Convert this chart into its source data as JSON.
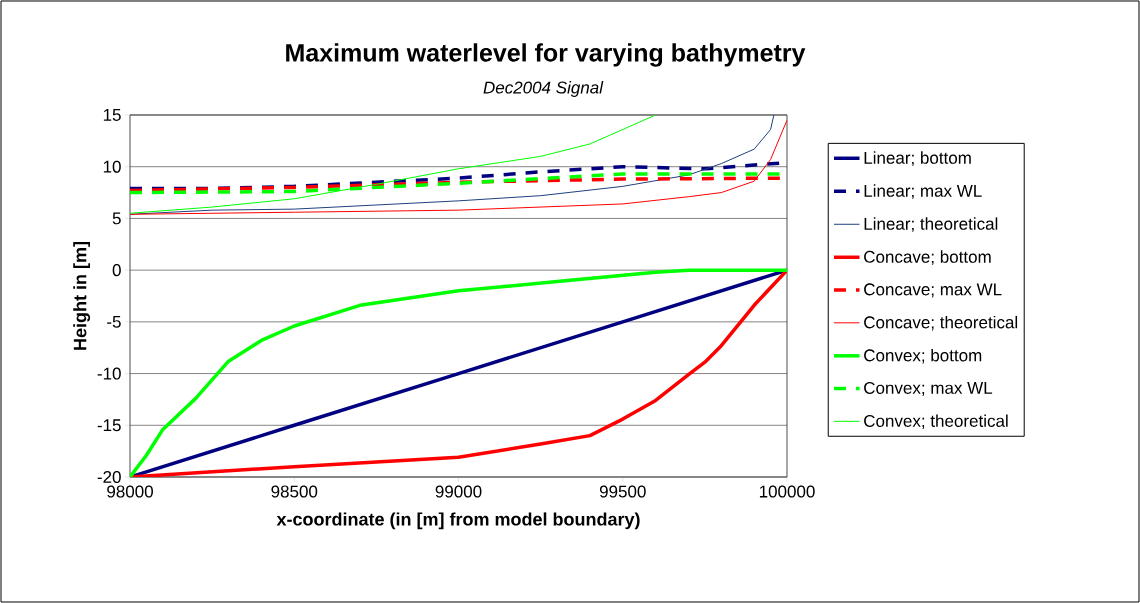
{
  "chart_data": {
    "type": "line",
    "title": "Maximum waterlevel for varying bathymetry",
    "subtitle": "Dec2004 Signal",
    "xlabel": "x-coordinate (in [m] from model boundary)",
    "ylabel": "Height in [m]",
    "xlim": [
      98000,
      100000
    ],
    "ylim": [
      -20,
      15
    ],
    "xticks": [
      98000,
      98500,
      99000,
      99500,
      100000
    ],
    "yticks": [
      -20,
      -15,
      -10,
      -5,
      0,
      5,
      10,
      15
    ],
    "grid": "y",
    "legend": "right",
    "series": [
      {
        "name": "Linear; bottom",
        "color": "#000080",
        "line_style": "solid",
        "x": [
          98000,
          98500,
          99000,
          99500,
          100000
        ],
        "values": [
          -20,
          -15,
          -10,
          -5,
          0
        ]
      },
      {
        "name": "Linear; max WL",
        "color": "#000080",
        "line_style": "dashed",
        "x": [
          98000,
          98250,
          98500,
          98750,
          99000,
          99250,
          99500,
          99750,
          100000
        ],
        "values": [
          7.9,
          7.9,
          8.1,
          8.5,
          8.9,
          9.5,
          10.0,
          9.8,
          10.4
        ]
      },
      {
        "name": "Linear; theoretical",
        "color": "#1f3f7f",
        "line_style": "solid",
        "x": [
          98000,
          98250,
          98500,
          98750,
          99000,
          99250,
          99500,
          99700,
          99800,
          99900,
          99950,
          99960
        ],
        "values": [
          5.4,
          5.8,
          5.9,
          6.3,
          6.7,
          7.2,
          8.1,
          9.2,
          10.3,
          11.7,
          13.6,
          15
        ]
      },
      {
        "name": "Concave; bottom",
        "color": "#ff0000",
        "line_style": "solid",
        "x": [
          98000,
          98500,
          99000,
          99250,
          99400,
          99500,
          99600,
          99700,
          99750,
          99800,
          99900,
          100000
        ],
        "values": [
          -20,
          -19,
          -18.1,
          -16.8,
          -16.0,
          -14.4,
          -12.6,
          -10.1,
          -8.9,
          -7.3,
          -3.4,
          0
        ]
      },
      {
        "name": "Concave; max WL",
        "color": "#ff0000",
        "line_style": "dashed",
        "x": [
          98000,
          98500,
          99000,
          99500,
          100000
        ],
        "values": [
          7.7,
          8.0,
          8.5,
          8.8,
          8.9
        ]
      },
      {
        "name": "Concave; theoretical",
        "color": "#ff0000",
        "line_style": "solid",
        "x": [
          98000,
          98500,
          99000,
          99500,
          99700,
          99800,
          99900,
          99950,
          100000
        ],
        "values": [
          5.4,
          5.6,
          5.8,
          6.4,
          7.1,
          7.5,
          8.6,
          10.7,
          14.5
        ]
      },
      {
        "name": "Convex; bottom",
        "color": "#00ff00",
        "line_style": "solid",
        "x": [
          98000,
          98050,
          98100,
          98200,
          98300,
          98400,
          98500,
          98700,
          99000,
          99300,
          99600,
          99700,
          100000
        ],
        "values": [
          -20,
          -17.9,
          -15.4,
          -12.4,
          -8.8,
          -6.8,
          -5.4,
          -3.4,
          -2.0,
          -1.1,
          -0.2,
          0,
          0
        ]
      },
      {
        "name": "Convex; max WL",
        "color": "#00ff00",
        "line_style": "dashed",
        "x": [
          98000,
          98500,
          99000,
          99500,
          100000
        ],
        "values": [
          7.5,
          7.6,
          8.4,
          9.3,
          9.3
        ]
      },
      {
        "name": "Convex; theoretical",
        "color": "#00ff00",
        "line_style": "solid",
        "x": [
          98000,
          98250,
          98500,
          98750,
          99000,
          99250,
          99400,
          99500,
          99600
        ],
        "values": [
          5.5,
          6.1,
          6.9,
          8.3,
          9.8,
          11.0,
          12.2,
          13.6,
          15
        ]
      }
    ]
  }
}
